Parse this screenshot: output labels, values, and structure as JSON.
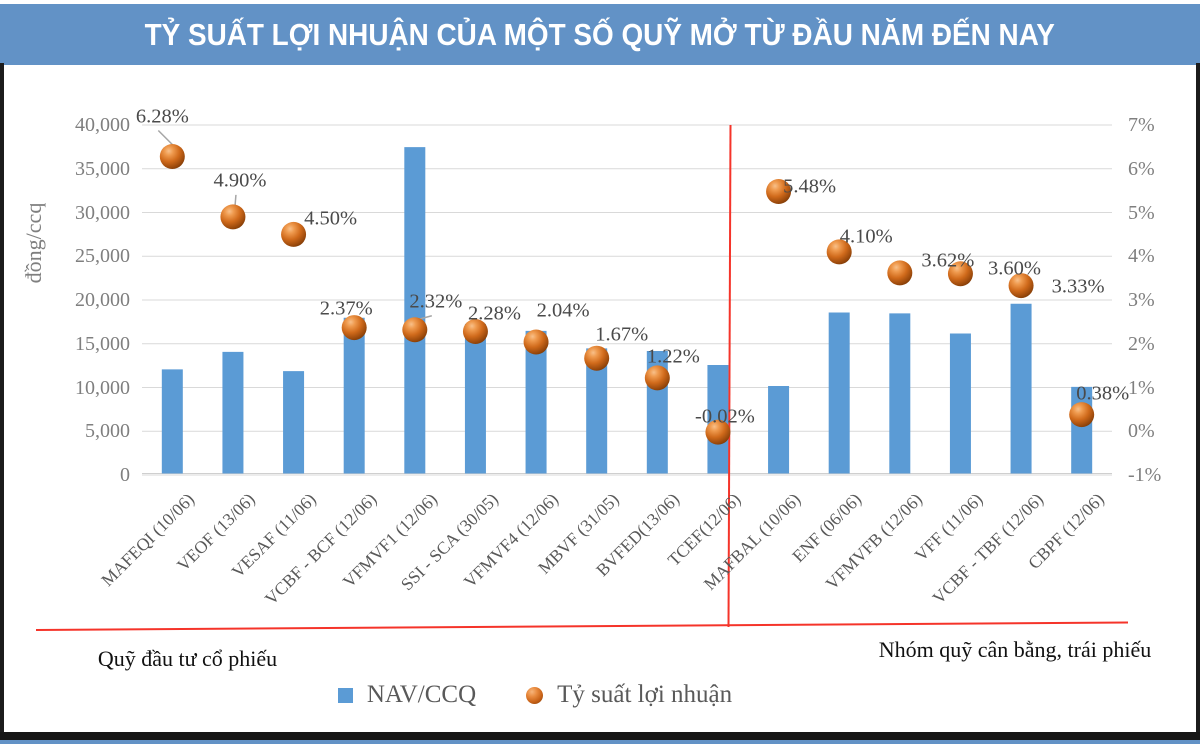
{
  "header": {
    "title": "TỶ SUẤT LỢI NHUẬN CỦA MỘT SỐ QUỸ MỞ TỪ ĐẦU NĂM ĐẾN NAY"
  },
  "colors": {
    "header_blue": "#6292c6",
    "bar_blue": "#5b9bd5",
    "point_orange": "#c96318",
    "divider_red": "#f5342a",
    "gridline_gray": "#d9d9d9",
    "axis_text_gray": "#7f7f7f",
    "data_label_gray": "#4a4a4a",
    "leader_gray": "#a6a6a6"
  },
  "chart_data": {
    "type": "combo-bar-scatter",
    "title": "TỶ SUẤT LỢI NHUẬN CỦA MỘT SỐ QUỸ MỞ TỪ ĐẦU NĂM ĐẾN NAY",
    "categories": [
      "MAFEQI (10/06)",
      "VEOF (13/06)",
      "VESAF (11/06)",
      "VCBF - BCF (12/06)",
      "VFMVF1 (12/06)",
      "SSI - SCA (30/05)",
      "VFMVF4 (12/06)",
      "MBVF (31/05)",
      "BVFED(13/06)",
      "TCEF(12/06)",
      "MAFBAL (10/06)",
      "ENF (06/06)",
      "VFMVFB (12/06)",
      "VFF (11/06)",
      "VCBF - TBF (12/06)",
      "CBPF (12/06)"
    ],
    "series": [
      {
        "name": "NAV/CCQ",
        "type": "bar",
        "axis": "left",
        "values": [
          11900,
          13900,
          11700,
          17800,
          37300,
          17100,
          16300,
          14300,
          14000,
          12400,
          10000,
          18400,
          18300,
          16000,
          19400,
          9900
        ]
      },
      {
        "name": "Tỷ suất lợi nhuận",
        "type": "scatter",
        "axis": "right",
        "values": [
          6.28,
          4.9,
          4.5,
          2.37,
          2.32,
          2.28,
          2.04,
          1.67,
          1.22,
          -0.02,
          5.48,
          4.1,
          3.62,
          3.6,
          3.33,
          0.38
        ],
        "point_labels": [
          "6.28%",
          "4.90%",
          "4.50%",
          "2.37%",
          "2.32%",
          "2.28%",
          "2.04%",
          "1.67%",
          "1.22%",
          "-0.02%",
          "5.48%",
          "4.10%",
          "3.62%",
          "3.60%",
          "3.33%",
          "0.38%"
        ],
        "label_offsets": [
          [
            -10,
            -40
          ],
          [
            7,
            -36
          ],
          [
            37,
            -15
          ],
          [
            -8,
            -19
          ],
          [
            21,
            -28
          ],
          [
            19,
            -18
          ],
          [
            27,
            -31
          ],
          [
            25,
            -23
          ],
          [
            16,
            -21
          ],
          [
            7,
            -15
          ],
          [
            31,
            -5
          ],
          [
            27,
            -15
          ],
          [
            48,
            -12
          ],
          [
            54,
            -5
          ],
          [
            57,
            1
          ],
          [
            21,
            -21
          ]
        ],
        "leader_line_points": [
          0,
          1,
          4
        ]
      }
    ],
    "left_axis": {
      "title": "đồng/ccq",
      "min": 0,
      "max": 40000,
      "step": 5000,
      "tick_labels": [
        "40,000",
        "35,000",
        "30,000",
        "25,000",
        "20,000",
        "15,000",
        "10,000",
        "5,000",
        "0"
      ]
    },
    "right_axis": {
      "min": -1,
      "max": 7,
      "step": 1,
      "tick_labels": [
        "7%",
        "6%",
        "5%",
        "4%",
        "3%",
        "2%",
        "1%",
        "0%",
        "-1%"
      ]
    },
    "group_labels": [
      "Quỹ đầu tư cổ phiếu",
      "Nhóm quỹ cân bằng, trái phiếu"
    ],
    "divider_after_category_index": 9,
    "legend": [
      "NAV/CCQ",
      "Tỷ suất lợi nhuận"
    ],
    "legend_position": "bottom",
    "grid": "horizontal"
  }
}
